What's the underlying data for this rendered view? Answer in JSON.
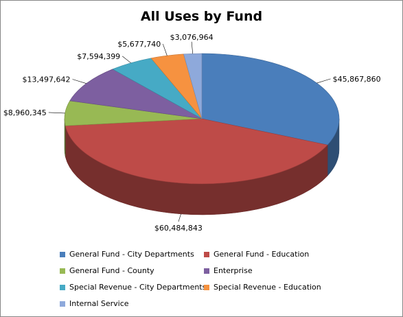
{
  "chart_data": {
    "type": "pie",
    "title": "All Uses by Fund",
    "legend_position": "bottom",
    "slices": [
      {
        "name": "General Fund - City Departments",
        "value": 45867860,
        "label": "$45,867,860",
        "color": "#4a7ebb"
      },
      {
        "name": "General Fund - Education",
        "value": 60484843,
        "label": "$60,484,843",
        "color": "#be4b48"
      },
      {
        "name": "General Fund - County",
        "value": 8960345,
        "label": "$8,960,345",
        "color": "#98b954"
      },
      {
        "name": "Enterprise",
        "value": 13497642,
        "label": "$13,497,642",
        "color": "#7d5fa0"
      },
      {
        "name": "Special Revenue - City Departments",
        "value": 7594399,
        "label": "$7,594,399",
        "color": "#46aac5"
      },
      {
        "name": "Special Revenue - Education",
        "value": 5677740,
        "label": "$5,677,740",
        "color": "#f69240"
      },
      {
        "name": "Internal Service",
        "value": 3076964,
        "label": "$3,076,964",
        "color": "#8ea9db"
      }
    ]
  }
}
